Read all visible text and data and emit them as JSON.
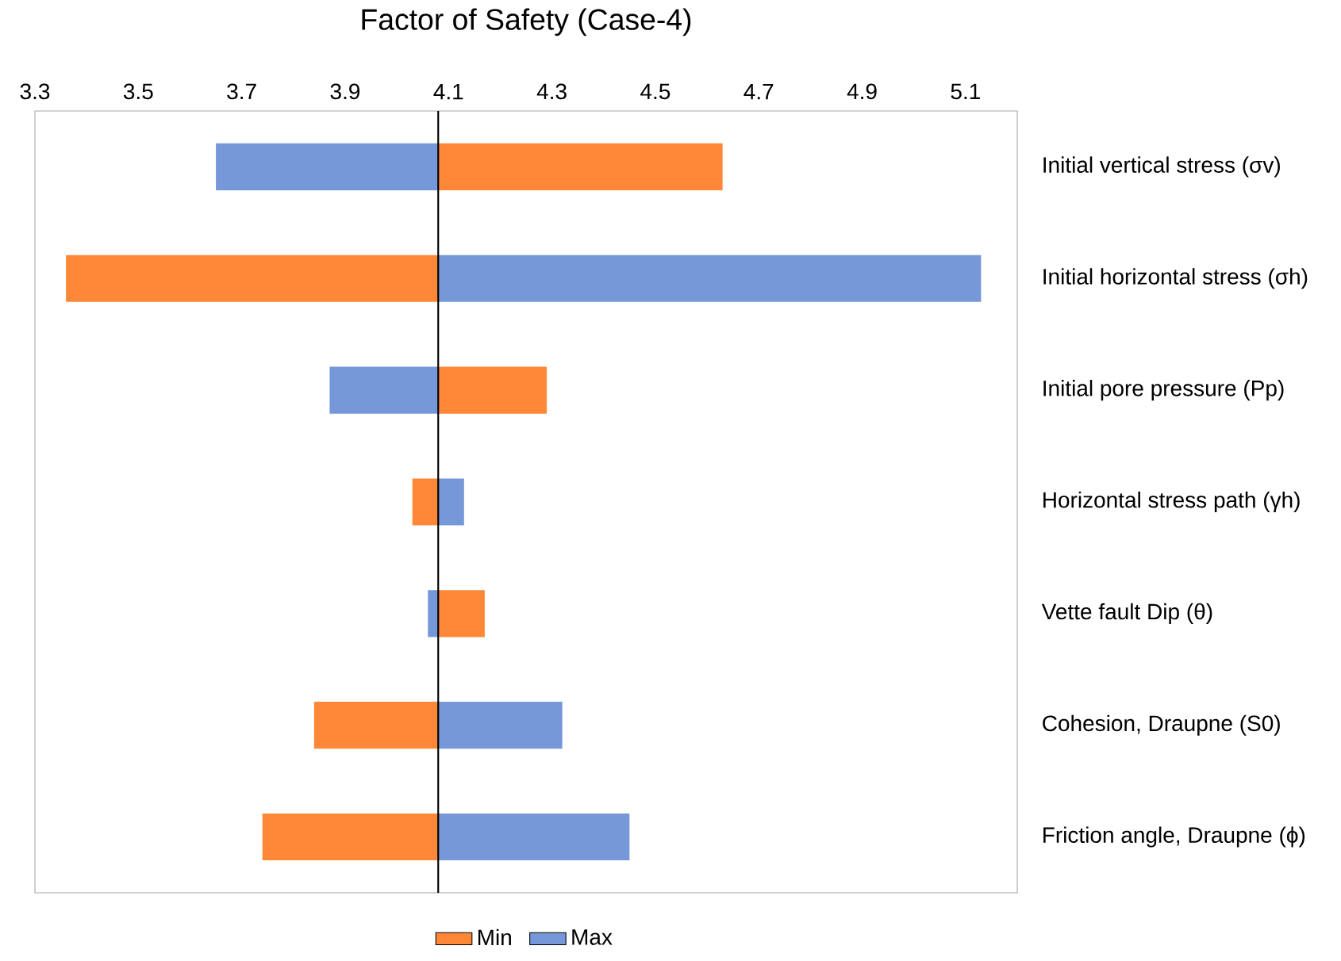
{
  "chart_data": {
    "type": "bar",
    "orientation": "horizontal",
    "title": "Factor of Safety (Case-4)",
    "categories": [
      "Initial vertical stress (σv)",
      "Initial horizontal stress (σh)",
      "Initial pore pressure (Pp)",
      "Horizontal stress path (γh)",
      "Vette fault Dip (θ)",
      "Cohesion, Draupne (S0)",
      "Friction angle, Draupne (ϕ)"
    ],
    "series": [
      {
        "name": "Min",
        "color": "#ff8838",
        "base": [
          4.08,
          4.08,
          4.08,
          4.08,
          4.08,
          4.08,
          4.08
        ],
        "values": [
          0.55,
          -0.72,
          0.21,
          -0.05,
          0.09,
          -0.24,
          -0.34
        ]
      },
      {
        "name": "Max",
        "color": "#7698d8",
        "base": [
          4.08,
          4.08,
          4.08,
          4.08,
          4.08,
          4.08,
          4.08
        ],
        "values": [
          -0.43,
          1.05,
          -0.21,
          0.05,
          -0.02,
          0.24,
          0.37
        ]
      }
    ],
    "xlim": [
      3.3,
      5.2
    ],
    "xticks": [
      3.3,
      3.5,
      3.7,
      3.9,
      4.1,
      4.3,
      4.5,
      4.7,
      4.9,
      5.1
    ],
    "ref_lines": [
      {
        "axis": "x",
        "value": 4.08,
        "color": "#000000"
      }
    ],
    "grid": false,
    "legend": "bottom"
  }
}
